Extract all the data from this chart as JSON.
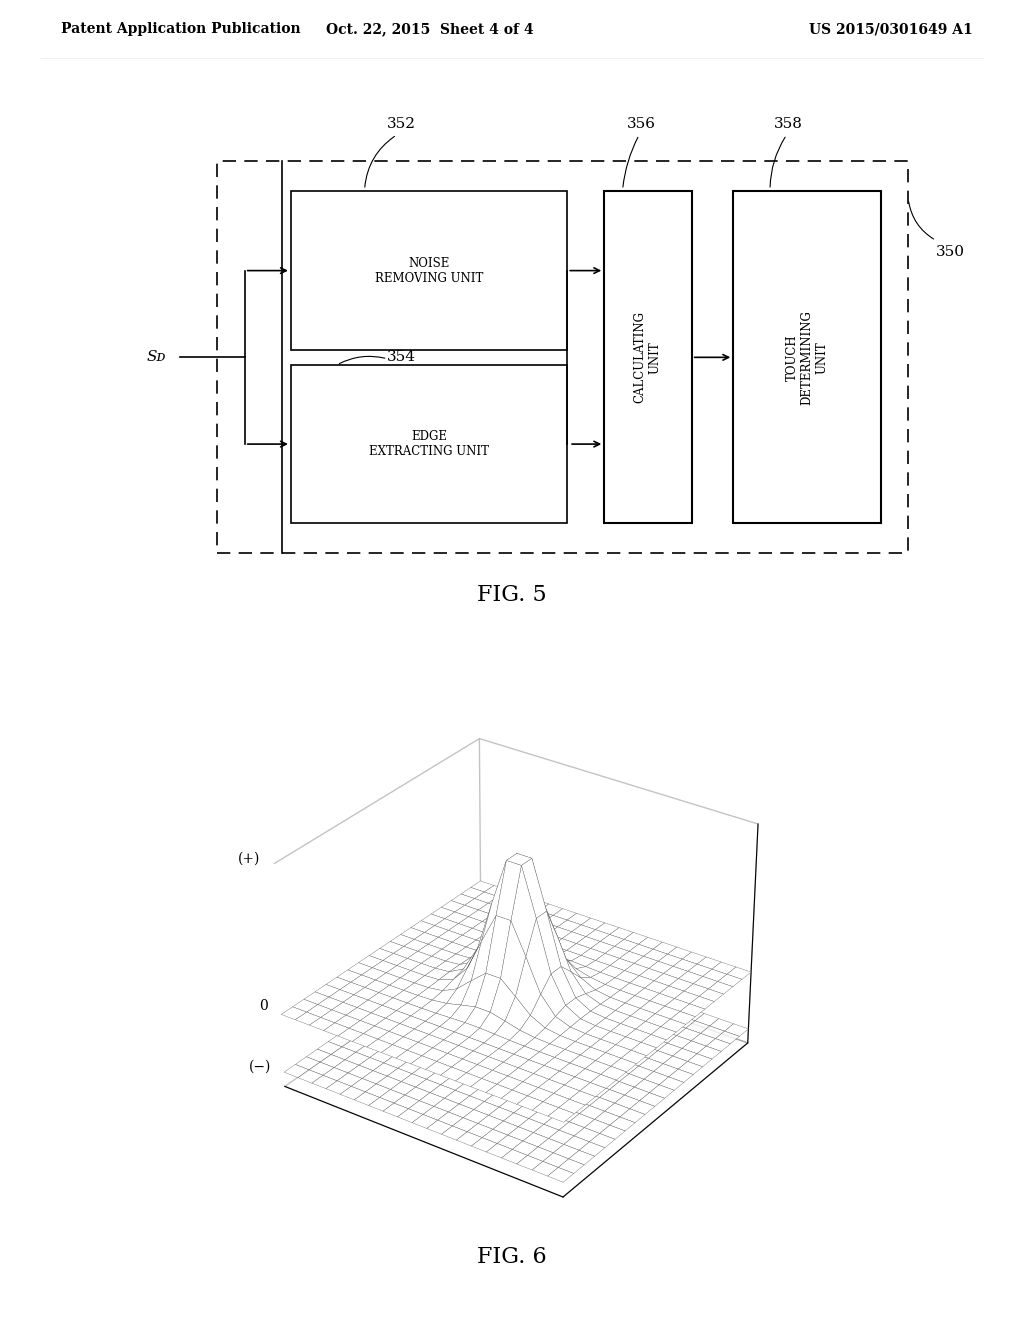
{
  "bg_color": "#ffffff",
  "header_left": "Patent Application Publication",
  "header_mid": "Oct. 22, 2015  Sheet 4 of 4",
  "header_right": "US 2015/0301649 A1",
  "header_fontsize": 10,
  "fig5_label": "FIG. 5",
  "fig6_label": "FIG. 6",
  "block_350_label": "350",
  "block_352_label": "352",
  "block_354_label": "354",
  "block_356_label": "356",
  "block_358_label": "358",
  "noise_unit_text": "NOISE\nREMOVING UNIT",
  "edge_unit_text": "EDGE\nEXTRACTING UNIT",
  "calc_unit_text": "CALCULATING\nUNIT",
  "touch_unit_text": "TOUCH\nDETERMINING\nUNIT",
  "sd_label": "Sᴅ",
  "ytick_plus": "(+)",
  "ytick_zero": "0",
  "ytick_minus": "(−)"
}
